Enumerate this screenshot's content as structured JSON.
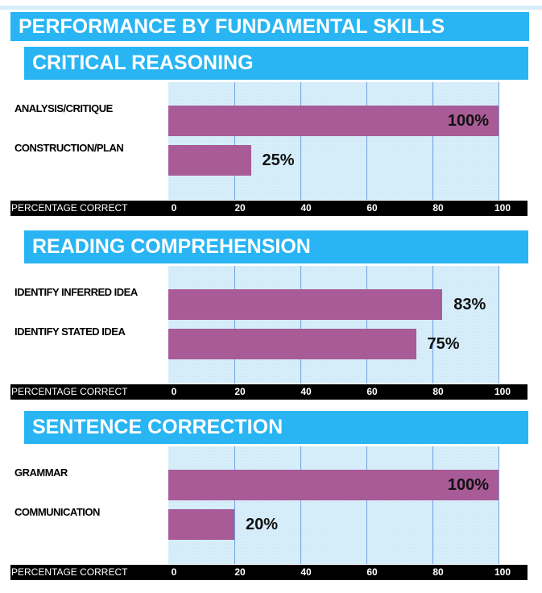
{
  "title": "PERFORMANCE BY FUNDAMENTAL SKILLS",
  "colors": {
    "header": "#29b5f3",
    "bar": "#a85b96",
    "axis_band": "#000000",
    "plot_bg": "#d7eefa",
    "grid": "#6f9fe0"
  },
  "chart_data": [
    {
      "type": "bar",
      "orientation": "horizontal",
      "title": "CRITICAL REASONING",
      "categories": [
        "ANALYSIS/CRITIQUE",
        "CONSTRUCTION/PLAN"
      ],
      "values": [
        100,
        25
      ],
      "data_labels": [
        "100%",
        "25%"
      ],
      "xlabel": "PERCENTAGE CORRECT",
      "xlim": [
        0,
        100
      ],
      "xticks": [
        "0",
        "20",
        "40",
        "60",
        "80",
        "100"
      ],
      "grid": true
    },
    {
      "type": "bar",
      "orientation": "horizontal",
      "title": "READING COMPREHENSION",
      "categories": [
        "IDENTIFY INFERRED IDEA",
        "IDENTIFY STATED IDEA"
      ],
      "values": [
        83,
        75
      ],
      "data_labels": [
        "83%",
        "75%"
      ],
      "xlabel": "PERCENTAGE CORRECT",
      "xlim": [
        0,
        100
      ],
      "xticks": [
        "0",
        "20",
        "40",
        "60",
        "80",
        "100"
      ],
      "grid": true
    },
    {
      "type": "bar",
      "orientation": "horizontal",
      "title": "SENTENCE CORRECTION",
      "categories": [
        "GRAMMAR",
        "COMMUNICATION"
      ],
      "values": [
        100,
        20
      ],
      "data_labels": [
        "100%",
        "20%"
      ],
      "xlabel": "PERCENTAGE CORRECT",
      "xlim": [
        0,
        100
      ],
      "xticks": [
        "0",
        "20",
        "40",
        "60",
        "80",
        "100"
      ],
      "grid": true
    }
  ]
}
